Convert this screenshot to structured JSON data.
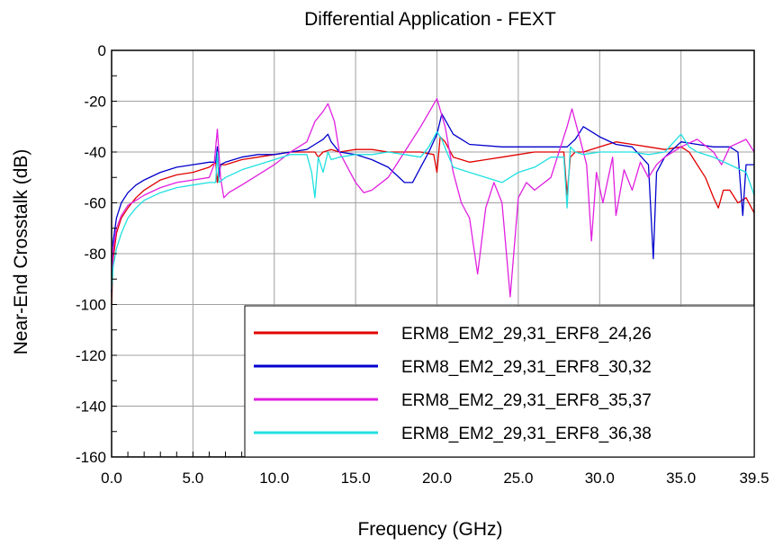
{
  "chart_data": {
    "type": "line",
    "title": "Differential Application - FEXT",
    "xlabel": "Frequency (GHz)",
    "ylabel": "Near-End Crosstalk (dB)",
    "xlim": [
      0,
      39.5
    ],
    "ylim": [
      -160,
      0
    ],
    "xticks": [
      0,
      5,
      10,
      15,
      20,
      25,
      30,
      35,
      39.5
    ],
    "xtick_labels": [
      "0.0",
      "5.0",
      "10.0",
      "15.0",
      "20.0",
      "25.0",
      "30.0",
      "35.0",
      "39.5"
    ],
    "yticks": [
      0,
      -20,
      -40,
      -60,
      -80,
      -100,
      -120,
      -140,
      -160
    ],
    "ytick_labels": [
      "0",
      "-20",
      "-40",
      "-60",
      "-80",
      "-100",
      "-120",
      "-140",
      "-160"
    ],
    "grid": true,
    "legend_position": "bottom-right",
    "series": [
      {
        "name": "ERM8_EM2_29,31_ERF8_24,26",
        "color": "#e00000",
        "x": [
          0,
          0.1,
          0.3,
          0.6,
          1,
          1.5,
          2,
          3,
          4,
          5,
          6,
          6.4,
          6.5,
          6.6,
          6.7,
          7,
          8,
          9,
          10,
          11,
          12,
          12.5,
          12.7,
          13,
          13.5,
          14,
          15,
          16,
          17,
          18,
          19,
          19.8,
          20,
          20.2,
          20.5,
          21,
          22,
          23,
          24,
          25,
          26,
          27,
          27.8,
          28,
          28.2,
          28.5,
          29,
          30,
          31,
          32,
          33,
          34,
          35,
          35.5,
          36,
          36.5,
          37,
          37.3,
          37.6,
          38,
          38.5,
          39,
          39.5
        ],
        "y": [
          -100,
          -82,
          -72,
          -66,
          -62,
          -58,
          -55,
          -51,
          -49,
          -48,
          -46,
          -44,
          -52,
          -47,
          -45,
          -45,
          -43,
          -42,
          -41,
          -40,
          -40,
          -40,
          -42,
          -40,
          -39,
          -40,
          -39,
          -39,
          -40,
          -40,
          -40,
          -41,
          -48,
          -34,
          -36,
          -42,
          -44,
          -43,
          -42,
          -41,
          -40,
          -40,
          -40,
          -57,
          -42,
          -40,
          -40,
          -38,
          -36,
          -37,
          -38,
          -39,
          -38,
          -40,
          -45,
          -50,
          -58,
          -62,
          -55,
          -55,
          -60,
          -58,
          -64
        ]
      },
      {
        "name": "ERM8_EM2_29,31_ERF8_30,32",
        "color": "#0000cc",
        "x": [
          0,
          0.1,
          0.3,
          0.6,
          1,
          1.5,
          2,
          3,
          4,
          5,
          6,
          6.4,
          6.5,
          6.6,
          6.7,
          7,
          8,
          9,
          10,
          11,
          12,
          12.5,
          13,
          13.3,
          13.5,
          14,
          15,
          16,
          17,
          18,
          18.5,
          19,
          19.5,
          20,
          20.3,
          21,
          22,
          24,
          26,
          27,
          28,
          28.5,
          29,
          30,
          31,
          32,
          33,
          33.3,
          33.5,
          34,
          35,
          36,
          37,
          38,
          38.5,
          38.8,
          39,
          39.5
        ],
        "y": [
          -95,
          -75,
          -66,
          -60,
          -56,
          -53,
          -51,
          -48,
          -46,
          -45,
          -44,
          -44,
          -38,
          -50,
          -45,
          -44,
          -42,
          -41,
          -41,
          -40,
          -39,
          -37,
          -35,
          -33,
          -36,
          -40,
          -41,
          -43,
          -46,
          -52,
          -52,
          -46,
          -40,
          -33,
          -25,
          -33,
          -37,
          -38,
          -38,
          -38,
          -38,
          -35,
          -30,
          -34,
          -37,
          -38,
          -45,
          -82,
          -48,
          -42,
          -36,
          -37,
          -38,
          -38,
          -40,
          -65,
          -45,
          -45
        ]
      },
      {
        "name": "ERM8_EM2_29,31_ERF8_35,37",
        "color": "#e020e0",
        "x": [
          0,
          0.1,
          0.3,
          0.6,
          1,
          1.5,
          2,
          3,
          4,
          5,
          6,
          6.3,
          6.5,
          6.7,
          6.9,
          7.2,
          8,
          9,
          10,
          11,
          12,
          12.5,
          13,
          13.3,
          13.7,
          14,
          15,
          15.5,
          16,
          17,
          18,
          19,
          20,
          20.5,
          21,
          21.5,
          22,
          22.5,
          23,
          23.5,
          24,
          24.5,
          25,
          25.5,
          26,
          27,
          27.5,
          28,
          28.3,
          28.8,
          29.2,
          29.5,
          29.8,
          30.2,
          30.8,
          31,
          31.5,
          32,
          32.5,
          33,
          33.5,
          34,
          35,
          36,
          37,
          37.5,
          38,
          39,
          39.5
        ],
        "y": [
          -95,
          -78,
          -70,
          -65,
          -61,
          -59,
          -57,
          -54,
          -52,
          -51,
          -50,
          -45,
          -31,
          -50,
          -58,
          -56,
          -53,
          -49,
          -45,
          -40,
          -36,
          -28,
          -24,
          -21,
          -28,
          -40,
          -52,
          -56,
          -55,
          -50,
          -40,
          -30,
          -19,
          -30,
          -48,
          -60,
          -66,
          -88,
          -62,
          -52,
          -60,
          -97,
          -58,
          -52,
          -55,
          -50,
          -40,
          -30,
          -23,
          -35,
          -45,
          -75,
          -48,
          -60,
          -42,
          -65,
          -47,
          -55,
          -44,
          -50,
          -45,
          -42,
          -38,
          -35,
          -40,
          -45,
          -38,
          -35,
          -40
        ]
      },
      {
        "name": "ERM8_EM2_29,31_ERF8_36,38",
        "color": "#20e0e0",
        "x": [
          0,
          0.1,
          0.3,
          0.6,
          1,
          1.5,
          2,
          3,
          4,
          5,
          6,
          6.4,
          6.5,
          6.6,
          7,
          8,
          9,
          10,
          11,
          12,
          12.3,
          12.5,
          12.7,
          13,
          13.3,
          13.5,
          14,
          15,
          16,
          17,
          18,
          19,
          19.5,
          20,
          20.3,
          20.6,
          21,
          22,
          23,
          24,
          25,
          26,
          27,
          27.8,
          28,
          28.2,
          28.5,
          29,
          30,
          31,
          32,
          33,
          34,
          35,
          35.5,
          36,
          37,
          38,
          39,
          39.5
        ],
        "y": [
          -95,
          -85,
          -78,
          -72,
          -66,
          -62,
          -59,
          -56,
          -54,
          -53,
          -52,
          -52,
          -40,
          -52,
          -50,
          -47,
          -45,
          -43,
          -41,
          -41,
          -48,
          -58,
          -42,
          -48,
          -40,
          -43,
          -42,
          -41,
          -41,
          -40,
          -41,
          -42,
          -38,
          -32,
          -35,
          -40,
          -46,
          -48,
          -50,
          -52,
          -48,
          -46,
          -42,
          -42,
          -62,
          -38,
          -40,
          -41,
          -40,
          -40,
          -40,
          -41,
          -40,
          -33,
          -38,
          -40,
          -42,
          -45,
          -48,
          -57
        ]
      }
    ]
  }
}
